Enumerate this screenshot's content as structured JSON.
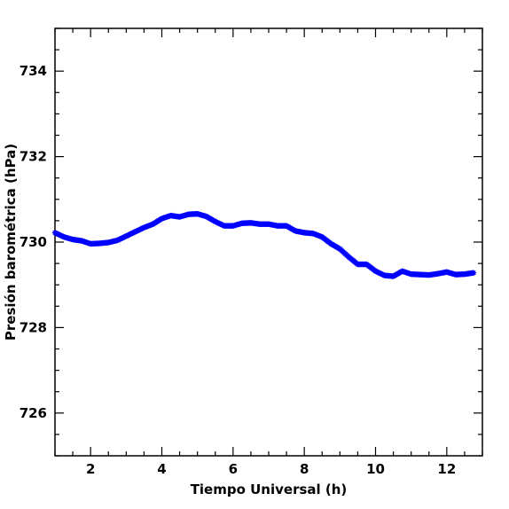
{
  "chart_data": {
    "type": "scatter",
    "xlabel": "Tiempo Universal (h)",
    "ylabel": "Presión barométrica (hPa)",
    "xlim": [
      1,
      13
    ],
    "ylim": [
      725,
      735
    ],
    "x_ticks_major": [
      2,
      4,
      6,
      8,
      10,
      12
    ],
    "x_tick_labels": [
      "2",
      "4",
      "6",
      "8",
      "10",
      "12"
    ],
    "y_ticks_major": [
      726,
      728,
      730,
      732,
      734
    ],
    "y_tick_labels": [
      "726",
      "728",
      "730",
      "732",
      "734"
    ],
    "marker": "star",
    "color": "#0000ff",
    "grid": false,
    "series": [
      {
        "x": [
          1.0,
          1.25,
          1.5,
          1.75,
          2.0,
          2.25,
          2.5,
          2.75,
          3.0,
          3.25,
          3.5,
          3.75,
          4.0,
          4.25,
          4.5,
          4.75,
          5.0,
          5.25,
          5.5,
          5.75,
          6.0,
          6.25,
          6.5,
          6.75,
          7.0,
          7.25,
          7.5,
          7.75,
          8.0,
          8.25,
          8.5,
          8.75,
          9.0,
          9.25,
          9.5,
          9.75,
          10.0,
          10.25,
          10.5,
          10.75,
          11.0,
          11.25,
          11.5,
          11.75,
          12.0,
          12.25,
          12.5,
          12.75
        ],
        "y": [
          730.22,
          730.12,
          730.06,
          730.03,
          729.96,
          729.97,
          729.99,
          730.04,
          730.14,
          730.24,
          730.34,
          730.42,
          730.55,
          730.62,
          730.59,
          730.65,
          730.66,
          730.6,
          730.48,
          730.38,
          730.38,
          730.44,
          730.45,
          730.42,
          730.42,
          730.38,
          730.38,
          730.26,
          730.22,
          730.2,
          730.12,
          729.96,
          729.84,
          729.65,
          729.48,
          729.48,
          729.32,
          729.22,
          729.2,
          729.32,
          729.25,
          729.24,
          729.23,
          729.26,
          729.3,
          729.24,
          729.25,
          729.28
        ]
      }
    ]
  }
}
